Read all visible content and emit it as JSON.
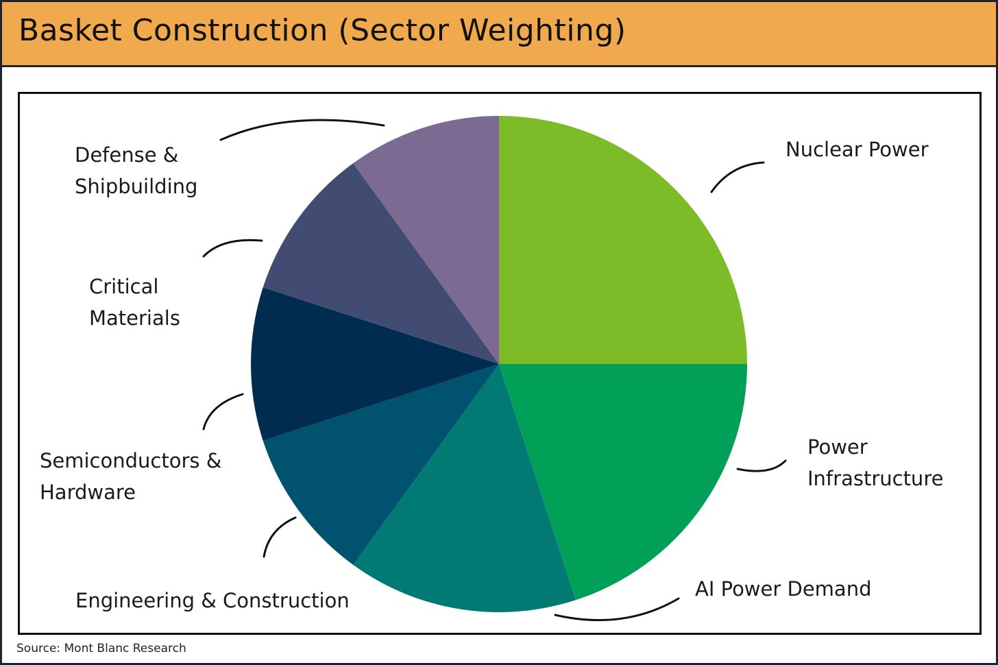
{
  "title": "Basket Construction (Sector Weighting)",
  "source": "Source: Mont Blanc Research",
  "chart_data": {
    "type": "pie",
    "title": "Basket Construction (Sector Weighting)",
    "start_angle_deg": 0,
    "direction": "clockwise",
    "unit": "%",
    "slices": [
      {
        "label": "Nuclear Power",
        "value": 25,
        "color": "#7dbb28"
      },
      {
        "label": "Power Infrastructure",
        "value": 20,
        "color": "#00a058"
      },
      {
        "label": "AI Power Demand",
        "value": 15,
        "color": "#027a74"
      },
      {
        "label": "Engineering & Construction",
        "value": 10,
        "color": "#00526f"
      },
      {
        "label": "Semiconductors & Hardware",
        "value": 10,
        "color": "#002d4f"
      },
      {
        "label": "Critical Materials",
        "value": 10,
        "color": "#424c72"
      },
      {
        "label": "Defense & Shipbuilding",
        "value": 10,
        "color": "#7b6a91"
      }
    ],
    "legend": "none (direct labels with leader lines)"
  }
}
